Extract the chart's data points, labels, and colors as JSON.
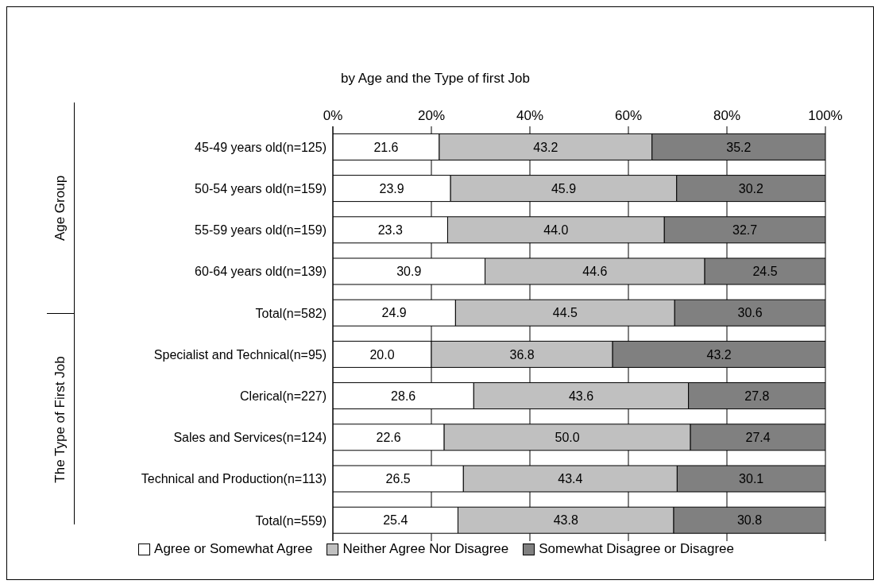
{
  "chart_data": {
    "type": "bar",
    "orientation": "horizontal",
    "stacked": true,
    "title": "by Age and the Type of first Job",
    "categories": [
      "45-49 years old(n=125)",
      "50-54 years old(n=159)",
      "55-59 years old(n=159)",
      "60-64 years old(n=139)",
      "Total(n=582)",
      "Specialist and Technical(n=95)",
      "Clerical(n=227)",
      "Sales and Services(n=124)",
      "Technical and Production(n=113)",
      "Total(n=559)"
    ],
    "series": [
      {
        "name": "Agree or Somewhat Agree",
        "color": "#ffffff",
        "values": [
          21.6,
          23.9,
          23.3,
          30.9,
          24.9,
          20.0,
          28.6,
          22.6,
          26.5,
          25.4
        ],
        "value_labels": [
          "21.6",
          "23.9",
          "23.3",
          "30.9",
          "24.9",
          "20.0",
          "28.6",
          "22.6",
          "26.5",
          "25.4"
        ]
      },
      {
        "name": "Neither Agree Nor Disagree",
        "color": "#c0c0c0",
        "values": [
          43.2,
          45.9,
          44.0,
          44.6,
          44.5,
          36.8,
          43.6,
          50.0,
          43.4,
          43.8
        ],
        "value_labels": [
          "43.2",
          "45.9",
          "44.0",
          "44.6",
          "44.5",
          "36.8",
          "43.6",
          "50.0",
          "43.4",
          "43.8"
        ]
      },
      {
        "name": "Somewhat Disagree or Disagree",
        "color": "#808080",
        "values": [
          35.2,
          30.2,
          32.7,
          24.5,
          30.6,
          43.2,
          27.8,
          27.4,
          30.1,
          30.8
        ],
        "value_labels": [
          "35.2",
          "30.2",
          "32.7",
          "24.5",
          "30.6",
          "43.2",
          "27.8",
          "27.4",
          "30.1",
          "30.8"
        ]
      }
    ],
    "xlim": [
      0,
      100
    ],
    "xticks": [
      {
        "value": 0,
        "label": "0%"
      },
      {
        "value": 20,
        "label": "20%"
      },
      {
        "value": 40,
        "label": "40%"
      },
      {
        "value": 60,
        "label": "60%"
      },
      {
        "value": 80,
        "label": "80%"
      },
      {
        "value": 100,
        "label": "100%"
      }
    ],
    "grid": "x",
    "legend": "bottom",
    "annotations": [
      "Age Group",
      "The Type of First Job"
    ]
  }
}
